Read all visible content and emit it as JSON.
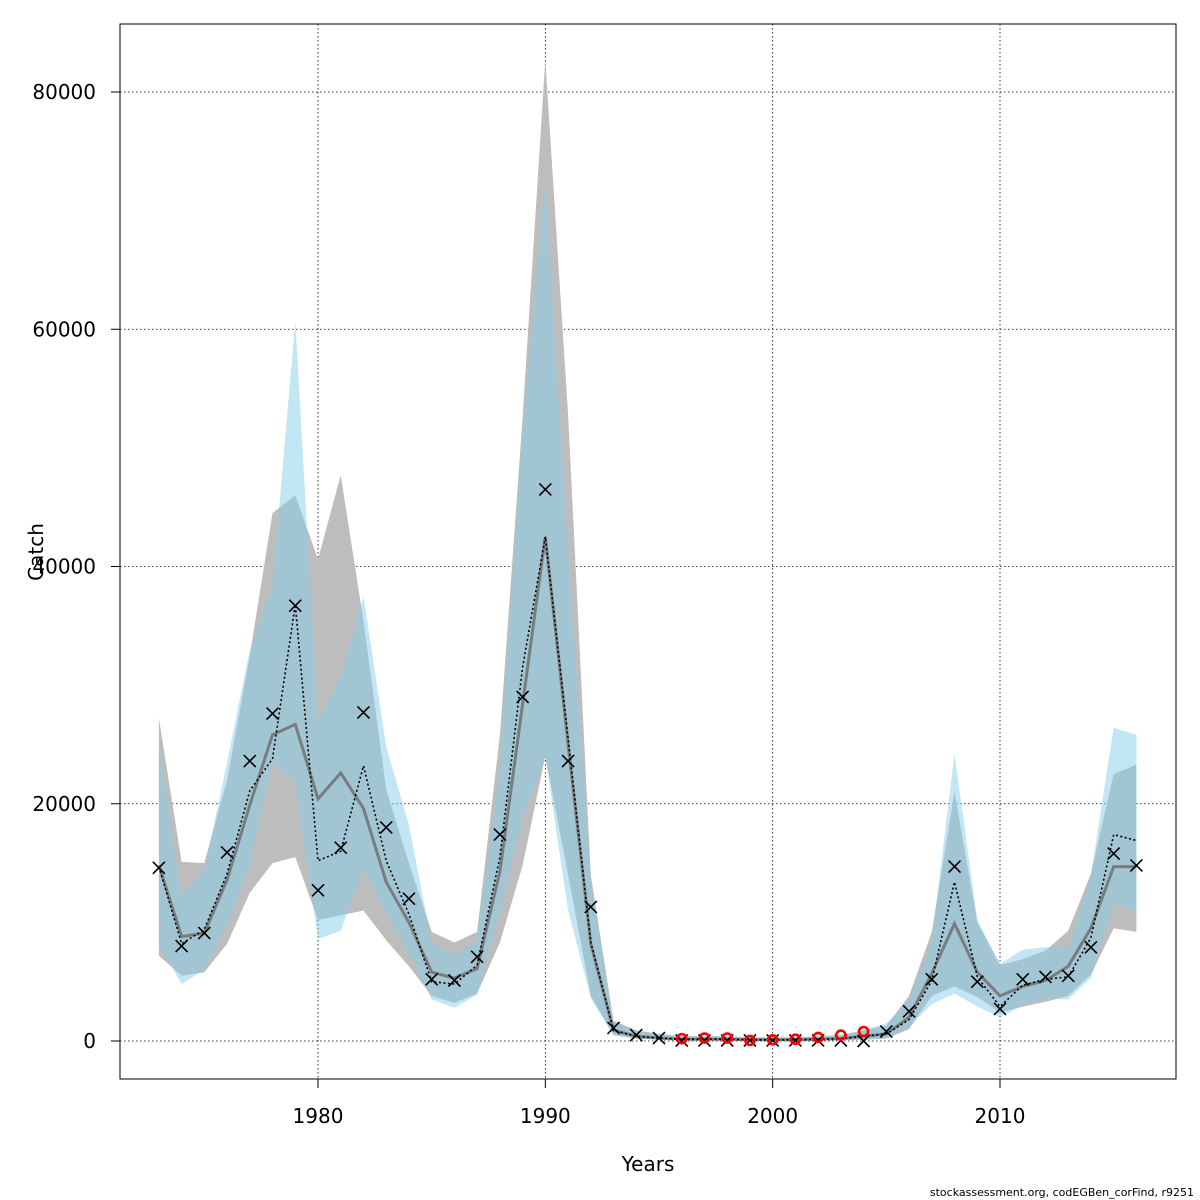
{
  "chart_data": {
    "type": "line",
    "xlabel": "Years",
    "ylabel": "Catch",
    "xlim": [
      1971.3,
      1976.7
    ],
    "ylim": [
      -3300,
      85800
    ],
    "x_ticks": [
      1980,
      1990,
      2000,
      2010
    ],
    "y_ticks": [
      0,
      20000,
      40000,
      60000,
      80000
    ],
    "grid": true,
    "years": [
      1973,
      1974,
      1975,
      1976,
      1977,
      1978,
      1979,
      1980,
      1981,
      1982,
      1983,
      1984,
      1985,
      1986,
      1987,
      1988,
      1989,
      1990,
      1991,
      1992,
      1993,
      1994,
      1995,
      1996,
      1997,
      1998,
      1999,
      2000,
      2001,
      2002,
      2003,
      2004,
      2005,
      2006,
      2007,
      2008,
      2009,
      2010,
      2011,
      2012,
      2013,
      2014,
      2015,
      2016
    ],
    "series": [
      {
        "style": "grey-band",
        "color": "#bdbdbd",
        "lower": [
          7200,
          5500,
          5800,
          8200,
          12500,
          15000,
          15500,
          10200,
          10600,
          11000,
          8500,
          6300,
          3800,
          3200,
          4000,
          8300,
          14800,
          24000,
          14000,
          3800,
          500,
          200,
          100,
          50,
          50,
          50,
          30,
          30,
          30,
          50,
          50,
          100,
          200,
          1000,
          3800,
          4600,
          3700,
          2400,
          2900,
          3300,
          3800,
          5600,
          9500,
          9200
        ],
        "upper": [
          27200,
          15100,
          15000,
          22000,
          32500,
          44500,
          46000,
          40600,
          47700,
          35400,
          21200,
          15000,
          9200,
          8300,
          9200,
          25800,
          52600,
          82700,
          52800,
          14000,
          1700,
          900,
          600,
          400,
          400,
          400,
          300,
          300,
          300,
          400,
          500,
          900,
          1300,
          3800,
          9200,
          21000,
          10000,
          6400,
          6900,
          7600,
          9300,
          14100,
          22500,
          23300
        ]
      },
      {
        "style": "blue-band",
        "color": "#87ceeb",
        "lower": [
          8200,
          4800,
          6000,
          9800,
          15000,
          23500,
          21800,
          8600,
          9300,
          14500,
          10800,
          7300,
          3500,
          2800,
          3900,
          10900,
          18800,
          24000,
          11000,
          3600,
          500,
          200,
          100,
          50,
          50,
          50,
          30,
          30,
          30,
          50,
          50,
          100,
          200,
          1200,
          3100,
          4000,
          2900,
          2000,
          3000,
          3600,
          3500,
          5300,
          11600,
          11000
        ],
        "upper": [
          24700,
          12300,
          14400,
          23500,
          33000,
          38500,
          60700,
          26900,
          30700,
          37500,
          24800,
          18200,
          8300,
          7200,
          8500,
          23100,
          51500,
          72600,
          40800,
          13300,
          1600,
          800,
          600,
          400,
          400,
          400,
          300,
          300,
          300,
          400,
          500,
          900,
          1500,
          3300,
          8500,
          24200,
          10200,
          6500,
          7700,
          7900,
          8000,
          14000,
          26400,
          25800
        ]
      },
      {
        "style": "grey-median",
        "color": "#707070",
        "values": [
          14800,
          8800,
          9100,
          13600,
          19900,
          25800,
          26700,
          20400,
          22600,
          19600,
          13400,
          10000,
          5800,
          5300,
          6100,
          14300,
          28400,
          42500,
          25000,
          8200,
          900,
          400,
          250,
          150,
          150,
          150,
          100,
          100,
          100,
          150,
          200,
          400,
          600,
          2000,
          5700,
          9900,
          5800,
          3800,
          4600,
          5100,
          6300,
          9500,
          14700,
          14700
        ]
      },
      {
        "style": "dotted-line",
        "color": "#000000",
        "values": [
          14700,
          8200,
          9400,
          14100,
          21100,
          23800,
          36800,
          15200,
          16000,
          23200,
          15200,
          10700,
          5000,
          4800,
          6400,
          15500,
          31500,
          42500,
          25500,
          8300,
          900,
          400,
          250,
          150,
          150,
          150,
          100,
          100,
          100,
          150,
          200,
          400,
          600,
          1800,
          5100,
          13400,
          5400,
          2900,
          4700,
          5200,
          5400,
          8700,
          17400,
          16900
        ]
      },
      {
        "style": "x-markers",
        "color": "#000000",
        "values": [
          14600,
          8000,
          9100,
          15900,
          23600,
          27600,
          36700,
          12700,
          16300,
          27700,
          18000,
          12000,
          5200,
          5100,
          7100,
          17400,
          29000,
          46500,
          23600,
          11300,
          1100,
          500,
          250,
          50,
          50,
          50,
          50,
          50,
          50,
          50,
          50,
          0,
          800,
          2500,
          5200,
          14700,
          5000,
          2700,
          5200,
          5400,
          5500,
          7900,
          15800,
          14800
        ]
      },
      {
        "style": "red-circles",
        "color": "#ff0000",
        "x": [
          1996,
          1997,
          1998,
          1999,
          2000,
          2001,
          2002,
          2003,
          2004
        ],
        "values": [
          200,
          250,
          250,
          50,
          100,
          150,
          300,
          500,
          800
        ]
      }
    ]
  },
  "footer": {
    "credit": "stockassessment.org, codEGBen_corFind, r9251"
  }
}
